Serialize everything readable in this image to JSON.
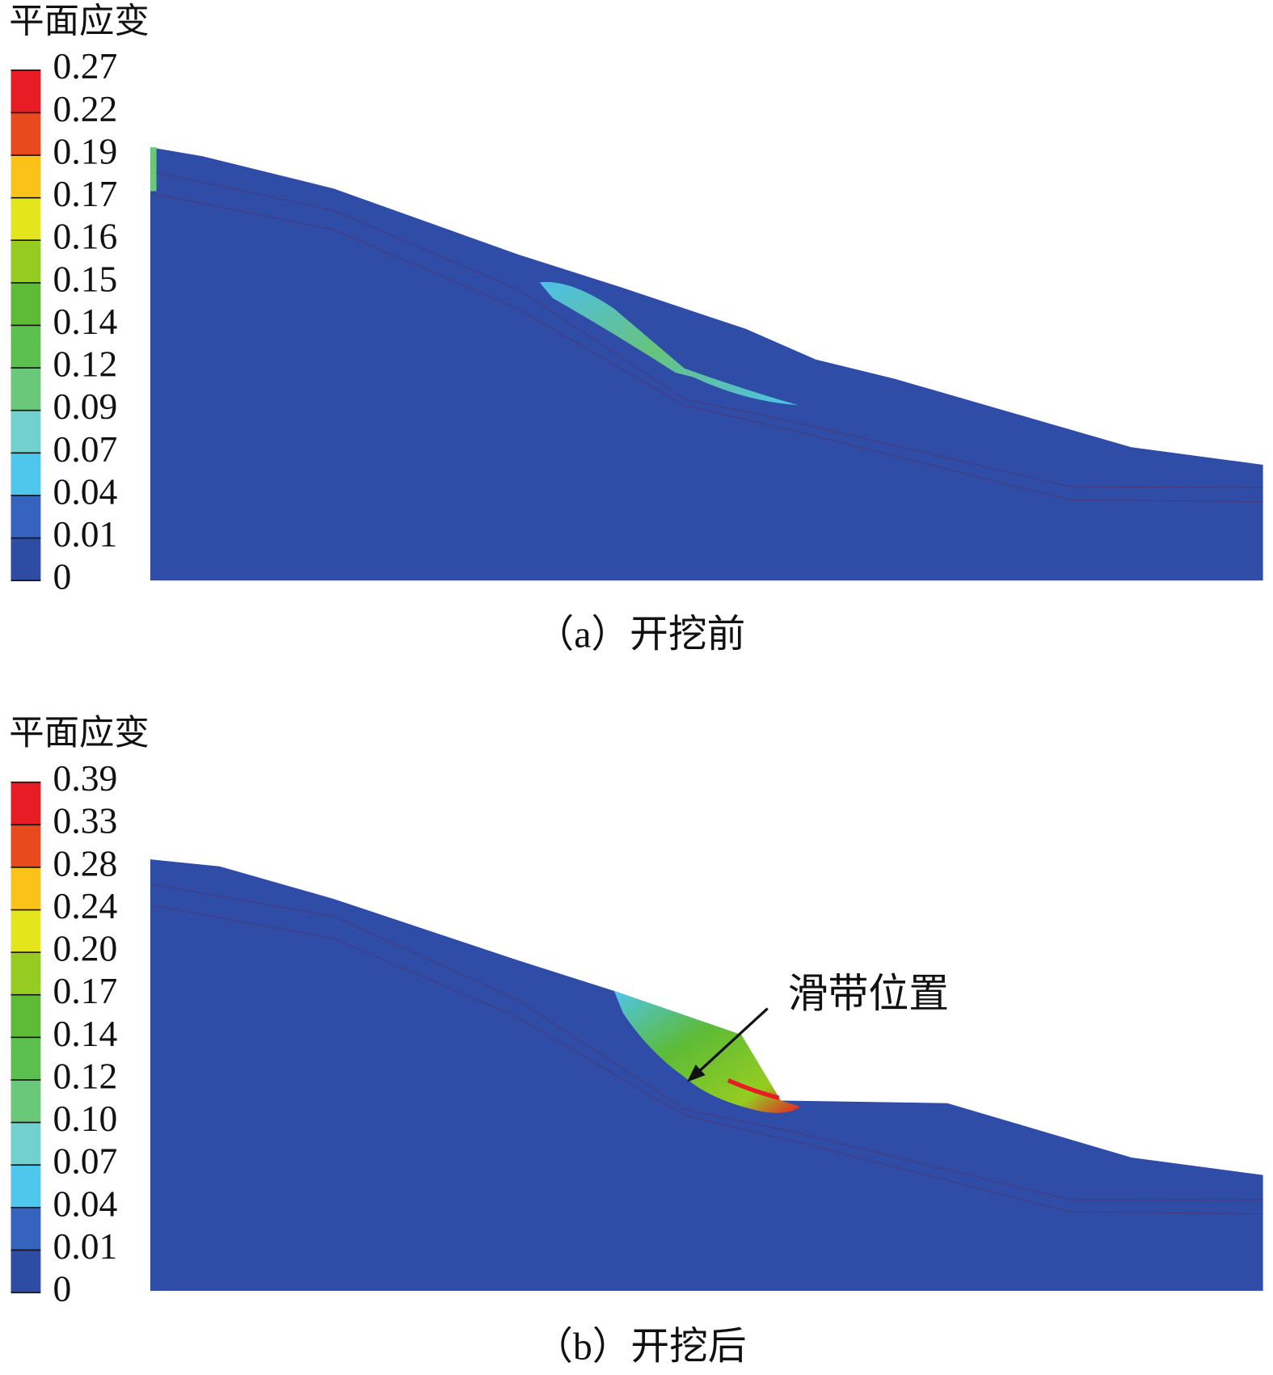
{
  "chart_data": [
    {
      "type": "contour",
      "title": "平面应变",
      "caption": "（a）开挖前",
      "yticks": [
        0,
        0.01,
        0.04,
        0.07,
        0.09,
        0.12,
        0.14,
        0.15,
        0.16,
        0.17,
        0.19,
        0.22,
        0.27
      ],
      "colors": [
        "#2e4ca4",
        "#3663be",
        "#4fc6ec",
        "#72d0cf",
        "#6ac87a",
        "#5cc050",
        "#5dbb36",
        "#96cc22",
        "#e4e51c",
        "#fbc31a",
        "#e84a1e",
        "#e81c24"
      ]
    },
    {
      "type": "contour",
      "title": "平面应变",
      "caption": "（b）开挖后",
      "annotation": "滑带位置",
      "yticks": [
        0,
        0.01,
        0.04,
        0.07,
        {
          "value": 0.1,
          "label": "0.10"
        },
        0.12,
        0.14,
        0.17,
        {
          "value": 0.2,
          "label": "0.20"
        },
        0.24,
        0.28,
        0.33,
        0.39
      ],
      "colors": [
        "#2e4ca4",
        "#3663be",
        "#4fc6ec",
        "#72d0cf",
        "#6ac87a",
        "#5cc050",
        "#5dbb36",
        "#96cc22",
        "#e4e51c",
        "#fbc31a",
        "#e84a1e",
        "#e81c24"
      ]
    }
  ]
}
